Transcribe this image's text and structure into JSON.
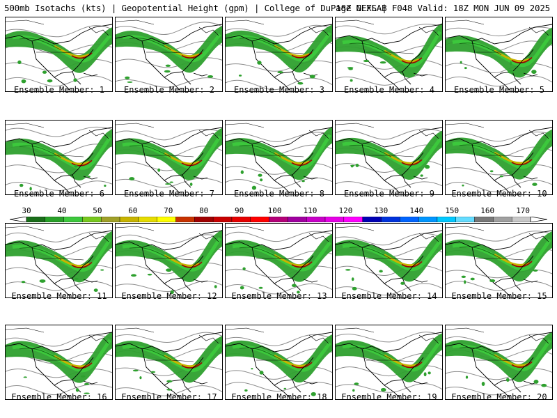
{
  "header": {
    "left": "500mb Isotachs (kts) | Geopotential Height (gpm) | College of DuPage NEXLAB",
    "right": "18Z GEFS | F048 Valid: 18Z MON JUN 09 2025"
  },
  "panels": [
    {
      "label": "Ensemble Member: 1"
    },
    {
      "label": "Ensemble Member: 2"
    },
    {
      "label": "Ensemble Member: 3"
    },
    {
      "label": "Ensemble Member: 4"
    },
    {
      "label": "Ensemble Member: 5"
    },
    {
      "label": "Ensemble Member: 6"
    },
    {
      "label": "Ensemble Member: 7"
    },
    {
      "label": "Ensemble Member: 8"
    },
    {
      "label": "Ensemble Member: 9"
    },
    {
      "label": "Ensemble Member: 10"
    },
    {
      "label": "Ensemble Member: 11"
    },
    {
      "label": "Ensemble Member: 12"
    },
    {
      "label": "Ensemble Member: 13"
    },
    {
      "label": "Ensemble Member: 14"
    },
    {
      "label": "Ensemble Member: 15"
    },
    {
      "label": "Ensemble Member: 16"
    },
    {
      "label": "Ensemble Member: 17"
    },
    {
      "label": "Ensemble Member: 18"
    },
    {
      "label": "Ensemble Member: 19"
    },
    {
      "label": "Ensemble Member: 20"
    }
  ],
  "colorbar": {
    "labels": [
      "30",
      "40",
      "50",
      "60",
      "70",
      "80",
      "90",
      "100",
      "110",
      "120",
      "130",
      "140",
      "150",
      "160",
      "170"
    ],
    "colors": [
      "#1a6e1a",
      "#28a028",
      "#3cc83c",
      "#78c81e",
      "#a0a028",
      "#c8b400",
      "#e6dc00",
      "#ffff00",
      "#c83200",
      "#a00000",
      "#c80000",
      "#e60000",
      "#ff0000",
      "#b40078",
      "#a000a0",
      "#c800c8",
      "#e600e6",
      "#ff00ff",
      "#0000b4",
      "#0032dc",
      "#0064ff",
      "#0096ff",
      "#00c8ff",
      "#64dcff",
      "#787878",
      "#a0a0a0",
      "#c8c8c8"
    ]
  }
}
